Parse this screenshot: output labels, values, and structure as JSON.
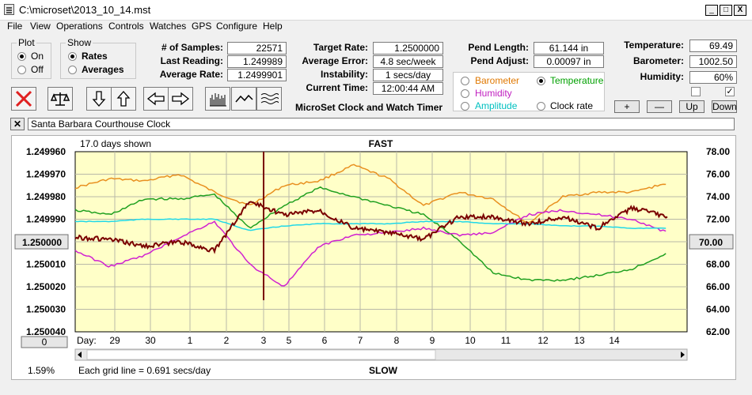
{
  "window": {
    "title": "C:\\microset\\2013_10_14.mst"
  },
  "menu": [
    "File",
    "View",
    "Operations",
    "Controls",
    "Watches",
    "GPS",
    "Configure",
    "Help"
  ],
  "plot_group": {
    "title": "Plot",
    "options": [
      "On",
      "Off"
    ],
    "selected": "On"
  },
  "show_group": {
    "title": "Show",
    "options": [
      "Rates",
      "Averages"
    ],
    "selected": "Rates"
  },
  "stats": {
    "samples_label": "# of Samples:",
    "samples": "22571",
    "last_reading_label": "Last Reading:",
    "last_reading": "1.249989",
    "average_rate_label": "Average Rate:",
    "average_rate": "1.2499901",
    "target_rate_label": "Target Rate:",
    "target_rate": "1.2500000",
    "average_error_label": "Average Error:",
    "average_error": "4.8 sec/week",
    "instability_label": "Instability:",
    "instability": "1 secs/day",
    "current_time_label": "Current Time:",
    "current_time": "12:00:44 AM",
    "pend_length_label": "Pend Length:",
    "pend_length": "61.144 in",
    "pend_adjust_label": "Pend Adjust:",
    "pend_adjust": "0.00097 in",
    "temperature_label": "Temperature:",
    "temperature": "69.49",
    "barometer_label": "Barometer:",
    "barometer": "1002.50",
    "humidity_label": "Humidity:",
    "humidity": "60%"
  },
  "app_title": "MicroSet Clock and Watch Timer",
  "overlay_group": {
    "options": [
      {
        "label": "Barometer",
        "color": "#e07800",
        "checked": false
      },
      {
        "label": "Temperature",
        "color": "#00a000",
        "checked": true
      },
      {
        "label": "Humidity",
        "color": "#c020c0",
        "checked": false
      },
      {
        "label": "Clock rate",
        "color": "#000000",
        "checked": false
      },
      {
        "label": "Amplitude",
        "color": "#00c0c0",
        "checked": false
      }
    ]
  },
  "checkboxes": {
    "left": false,
    "right": true
  },
  "scale_buttons": {
    "plus": "+",
    "minus": "—",
    "up": "Up",
    "down": "Down"
  },
  "toolbar_icons": [
    "close-x-icon",
    "balance-scale-icon",
    "arrow-down-icon",
    "arrow-up-icon",
    "arrow-left-icon",
    "arrow-right-icon",
    "bar-chart-icon",
    "wave-icon",
    "multi-wave-icon"
  ],
  "watch_name": "Santa Barbara Courthouse Clock",
  "chart": {
    "days_shown": "17.0 days shown",
    "top_label": "FAST",
    "bottom_label": "SLOW",
    "day_label": "Day:",
    "grid_note": "Each grid line = 0.691 secs/day",
    "percent": "1.59%",
    "left_button": "0",
    "left_center_value": "1.250000",
    "right_center_value": "70.00",
    "colors": {
      "background": "#ffffc8",
      "clock": "#7a0000",
      "barometer": "#e89020",
      "temperature": "#20a020",
      "humidity": "#d020d0",
      "amplitude": "#20d8e8"
    }
  },
  "chart_data": {
    "type": "line",
    "x_tick_labels": [
      "29",
      "30",
      "1",
      "2",
      "3",
      "5",
      "6",
      "7",
      "8",
      "9",
      "10",
      "11",
      "12",
      "13",
      "14"
    ],
    "y_left_ticks": [
      "1.249960",
      "1.249970",
      "1.249980",
      "1.249990",
      "1.250000",
      "1.250010",
      "1.250020",
      "1.250030",
      "1.250040"
    ],
    "y_right_ticks": [
      "78.00",
      "76.00",
      "74.00",
      "72.00",
      "70.00",
      "68.00",
      "66.00",
      "64.00",
      "62.00"
    ],
    "y_left_range": [
      1.24996,
      1.25004
    ],
    "y_right_range": [
      62,
      78
    ],
    "series": [
      {
        "name": "Barometer",
        "color": "#e89020",
        "x": [
          0,
          1,
          2,
          3,
          4,
          5,
          6,
          7,
          8,
          9,
          10,
          11,
          12,
          13,
          14,
          15,
          16,
          17
        ],
        "y": [
          1.249976,
          1.249972,
          1.249973,
          1.24997,
          1.249978,
          1.249984,
          1.249975,
          1.249973,
          1.249966,
          1.249972,
          1.249984,
          1.249978,
          1.249981,
          1.249992,
          1.24998,
          1.249978,
          1.249978,
          1.249974
        ]
      },
      {
        "name": "Temperature",
        "color": "#20a020",
        "x": [
          0,
          1,
          2,
          3,
          4,
          5,
          6,
          7,
          8,
          9,
          10,
          11,
          12,
          13,
          14,
          15,
          16,
          17
        ],
        "y": [
          1.249986,
          1.249988,
          1.249981,
          1.249981,
          1.249979,
          1.249994,
          1.249984,
          1.249976,
          1.24998,
          1.249984,
          1.249988,
          1.249999,
          1.250014,
          1.250017,
          1.250017,
          1.250015,
          1.250012,
          1.250005
        ]
      },
      {
        "name": "Humidity",
        "color": "#d020d0",
        "x": [
          0,
          1,
          2,
          3,
          4,
          5,
          6,
          7,
          8,
          9,
          10,
          11,
          12,
          13,
          14,
          15,
          16,
          17
        ],
        "y": [
          1.250004,
          1.250011,
          1.250006,
          1.249998,
          1.249991,
          1.25001,
          1.25002,
          1.250002,
          1.249997,
          1.249996,
          1.249994,
          1.249997,
          1.249996,
          1.249988,
          1.249986,
          1.249988,
          1.24999,
          1.249996
        ]
      },
      {
        "name": "Amplitude",
        "color": "#20d8e8",
        "x": [
          0,
          1,
          2,
          3,
          4,
          5,
          6,
          7,
          8,
          9,
          10,
          11,
          12,
          13,
          14,
          15,
          16,
          17
        ],
        "y": [
          1.249991,
          1.249991,
          1.24999,
          1.24999,
          1.24999,
          1.249995,
          1.249993,
          1.249992,
          1.249992,
          1.249992,
          1.249991,
          1.249991,
          1.249992,
          1.249992,
          1.249993,
          1.249993,
          1.249994,
          1.249994
        ]
      },
      {
        "name": "Clock rate",
        "color": "#7a0000",
        "x": [
          0,
          1,
          2,
          3,
          4,
          5,
          6,
          7,
          8,
          9,
          10,
          11,
          12,
          13,
          14,
          15,
          16,
          17
        ],
        "y": [
          1.249998,
          1.249999,
          1.250002,
          1.25,
          1.250004,
          1.249982,
          1.249988,
          1.249986,
          1.249994,
          1.249996,
          1.249999,
          1.249989,
          1.249989,
          1.249992,
          1.249989,
          1.249994,
          1.249985,
          1.249989
        ]
      }
    ]
  }
}
